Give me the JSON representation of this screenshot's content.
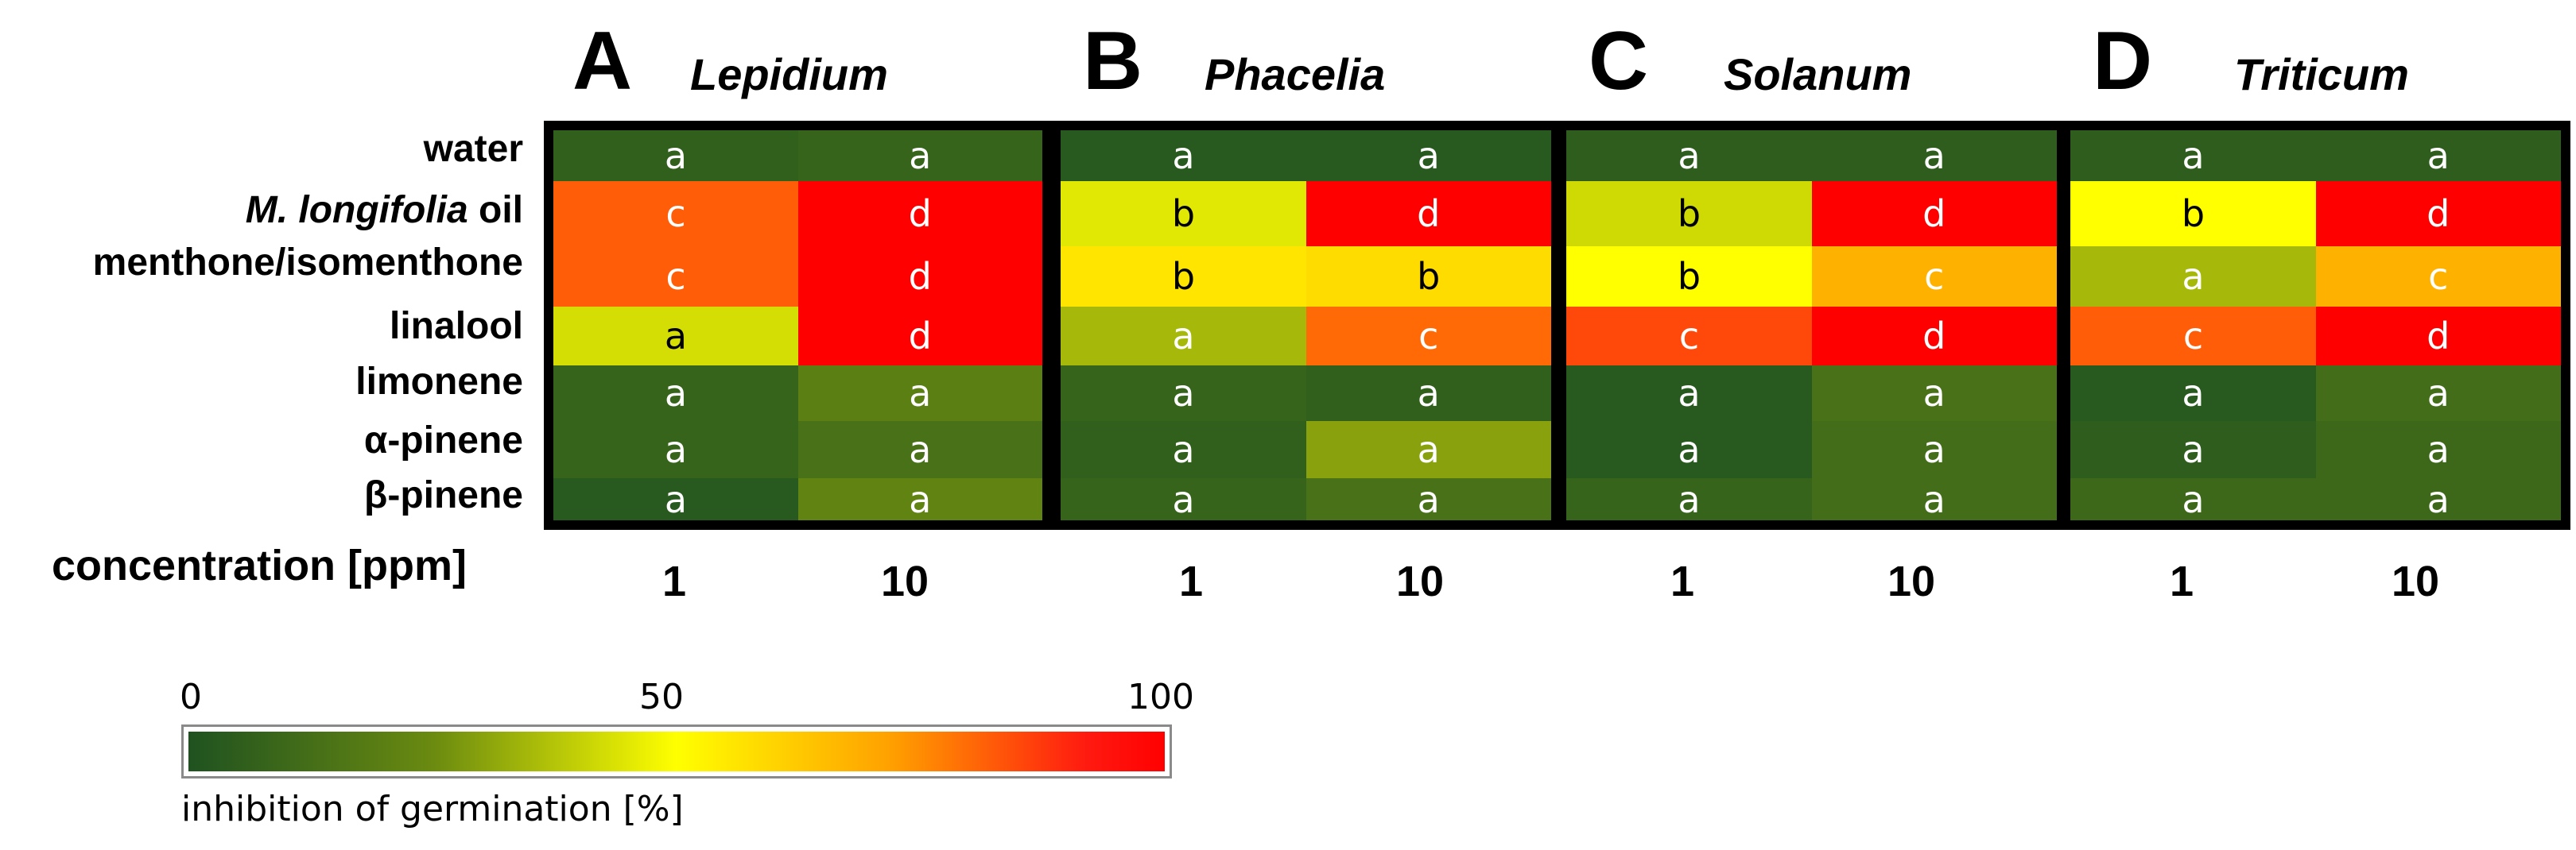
{
  "chart_data": {
    "type": "heatmap",
    "colorbar": {
      "label": "inhibition of germination [%]",
      "min": 0,
      "max": 100,
      "ticks": [
        "0",
        "50",
        "100"
      ],
      "stops": [
        {
          "value": 0,
          "color": "#1f5220"
        },
        {
          "value": 25,
          "color": "#6a8a10"
        },
        {
          "value": 50,
          "color": "#ffff00"
        },
        {
          "value": 72,
          "color": "#ffa000"
        },
        {
          "value": 92,
          "color": "#ff1a10"
        },
        {
          "value": 100,
          "color": "#ff0000"
        }
      ]
    },
    "row_labels": [
      {
        "prefix": "",
        "italic": "",
        "suffix": "water"
      },
      {
        "prefix": "",
        "italic": "M. longifolia",
        "suffix": " oil"
      },
      {
        "prefix": "",
        "italic": "",
        "suffix": "menthone/isomenthone"
      },
      {
        "prefix": "",
        "italic": "",
        "suffix": "linalool"
      },
      {
        "prefix": "",
        "italic": "",
        "suffix": "limonene"
      },
      {
        "prefix": "",
        "italic": "",
        "suffix": "α-pinene"
      },
      {
        "prefix": "",
        "italic": "",
        "suffix": "β-pinene"
      }
    ],
    "x_axis_label": "concentration [ppm]",
    "columns": [
      "1",
      "10"
    ],
    "panels": [
      {
        "letter": "A",
        "title": "Lepidium",
        "values": [
          [
            6,
            8
          ],
          [
            82,
            100
          ],
          [
            82,
            100
          ],
          [
            43,
            100
          ],
          [
            8,
            20
          ],
          [
            8,
            14
          ],
          [
            3,
            22
          ]
        ],
        "letters": [
          [
            "a",
            "a"
          ],
          [
            "c",
            "d"
          ],
          [
            "c",
            "d"
          ],
          [
            "a",
            "d"
          ],
          [
            "a",
            "a"
          ],
          [
            "a",
            "a"
          ],
          [
            "a",
            "a"
          ]
        ]
      },
      {
        "letter": "B",
        "title": "Phacelia",
        "values": [
          [
            3,
            3
          ],
          [
            45,
            100
          ],
          [
            56,
            58
          ],
          [
            35,
            80
          ],
          [
            8,
            6
          ],
          [
            6,
            30
          ],
          [
            8,
            14
          ]
        ],
        "letters": [
          [
            "a",
            "a"
          ],
          [
            "b",
            "d"
          ],
          [
            "b",
            "b"
          ],
          [
            "a",
            "c"
          ],
          [
            "a",
            "a"
          ],
          [
            "a",
            "a"
          ],
          [
            "a",
            "a"
          ]
        ]
      },
      {
        "letter": "C",
        "title": "Solanum",
        "values": [
          [
            5,
            5
          ],
          [
            42,
            100
          ],
          [
            50,
            68
          ],
          [
            85,
            100
          ],
          [
            3,
            14
          ],
          [
            3,
            12
          ],
          [
            8,
            12
          ]
        ],
        "letters": [
          [
            "a",
            "a"
          ],
          [
            "b",
            "d"
          ],
          [
            "b",
            "c"
          ],
          [
            "c",
            "d"
          ],
          [
            "a",
            "a"
          ],
          [
            "a",
            "a"
          ],
          [
            "a",
            "a"
          ]
        ]
      },
      {
        "letter": "D",
        "title": "Triticum",
        "values": [
          [
            5,
            5
          ],
          [
            50,
            100
          ],
          [
            35,
            68
          ],
          [
            82,
            100
          ],
          [
            3,
            12
          ],
          [
            5,
            10
          ],
          [
            10,
            10
          ]
        ],
        "letters": [
          [
            "a",
            "a"
          ],
          [
            "b",
            "d"
          ],
          [
            "a",
            "c"
          ],
          [
            "c",
            "d"
          ],
          [
            "a",
            "a"
          ],
          [
            "a",
            "a"
          ],
          [
            "a",
            "a"
          ]
        ]
      }
    ]
  }
}
